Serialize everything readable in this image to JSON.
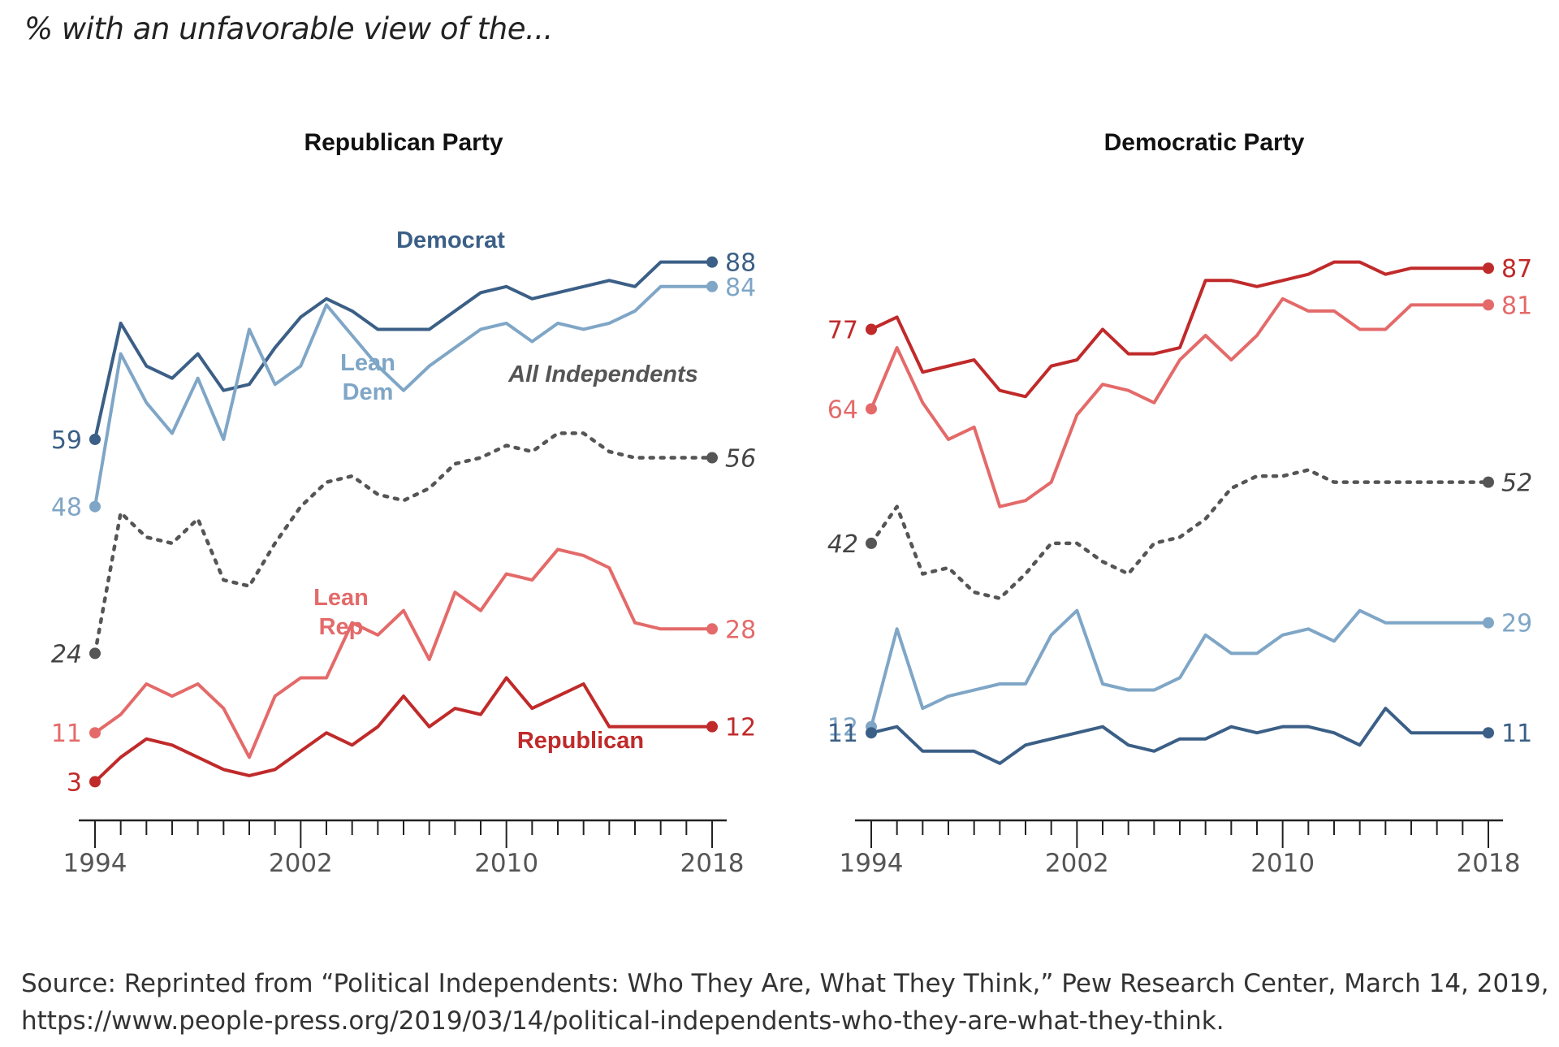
{
  "subtitle": "% with an unfavorable view of the...",
  "source": {
    "line1": "Source: Reprinted from “Political Independents: Who They Are, What They Think,” Pew Research Center, March 14, 2019,",
    "line2": "https://www.people-press.org/2019/03/14/political-independents-who-they-are-what-they-think."
  },
  "colors": {
    "democrat": "#3b5f86",
    "lean_dem": "#7fa6c6",
    "all_independents": "#555555",
    "lean_rep": "#e46a6a",
    "republican": "#c02a2a",
    "axis": "#222222",
    "tick_label": "#555555"
  },
  "chart_data": [
    {
      "type": "line",
      "title": "Republican Party",
      "xlabel": "",
      "ylabel": "",
      "x_tick_labels": [
        "1994",
        "2002",
        "2010",
        "2018"
      ],
      "xlim": [
        1994,
        2018
      ],
      "ylim": [
        0,
        95
      ],
      "x": [
        1994,
        1995,
        1996,
        1997,
        1998,
        1999,
        2000,
        2001,
        2002,
        2003,
        2004,
        2005,
        2006,
        2007,
        2008,
        2009,
        2010,
        2011,
        2012,
        2013,
        2014,
        2015,
        2016,
        2017,
        2018
      ],
      "series": [
        {
          "name": "Democrat",
          "key": "democrat",
          "end_label": "88",
          "start_label": "59",
          "values": [
            59,
            78,
            71,
            69,
            73,
            67,
            68,
            74,
            79,
            82,
            80,
            77,
            77,
            77,
            80,
            83,
            84,
            82,
            83,
            84,
            85,
            84,
            88,
            88,
            88
          ]
        },
        {
          "name": "Lean Dem",
          "key": "lean_dem",
          "end_label": "84",
          "start_label": "48",
          "values": [
            48,
            73,
            65,
            60,
            69,
            59,
            77,
            68,
            71,
            81,
            76,
            71,
            67,
            71,
            74,
            77,
            78,
            75,
            78,
            77,
            78,
            80,
            84,
            84,
            84
          ]
        },
        {
          "name": "All Independents",
          "key": "all_independents",
          "dashed": true,
          "end_label": "56",
          "start_label": "24",
          "values": [
            24,
            47,
            43,
            42,
            46,
            36,
            35,
            42,
            48,
            52,
            53,
            50,
            49,
            51,
            55,
            56,
            58,
            57,
            60,
            60,
            57,
            56,
            56,
            56,
            56
          ]
        },
        {
          "name": "Lean Rep",
          "key": "lean_rep",
          "end_label": "28",
          "start_label": "11",
          "values": [
            11,
            14,
            19,
            17,
            19,
            15,
            7,
            17,
            20,
            20,
            29,
            27,
            31,
            23,
            34,
            31,
            37,
            36,
            41,
            40,
            38,
            29,
            28,
            28,
            28
          ]
        },
        {
          "name": "Republican",
          "key": "republican",
          "end_label": "12",
          "start_label": "3",
          "values": [
            3,
            7,
            10,
            9,
            7,
            5,
            4,
            5,
            8,
            11,
            9,
            12,
            17,
            12,
            15,
            14,
            20,
            15,
            17,
            19,
            12,
            12,
            12,
            12,
            12
          ]
        }
      ],
      "series_labels": [
        {
          "key": "democrat",
          "lines": [
            "Democrat"
          ]
        },
        {
          "key": "lean_dem",
          "lines": [
            "Lean",
            "Dem"
          ]
        },
        {
          "key": "all_independents",
          "lines": [
            "All Independents"
          ]
        },
        {
          "key": "lean_rep",
          "lines": [
            "Lean",
            "Rep"
          ]
        },
        {
          "key": "republican",
          "lines": [
            "Republican"
          ]
        }
      ]
    },
    {
      "type": "line",
      "title": "Democratic Party",
      "xlabel": "",
      "ylabel": "",
      "x_tick_labels": [
        "1994",
        "2002",
        "2010",
        "2018"
      ],
      "xlim": [
        1994,
        2018
      ],
      "ylim": [
        0,
        95
      ],
      "x": [
        1994,
        1995,
        1996,
        1997,
        1998,
        1999,
        2000,
        2001,
        2002,
        2003,
        2004,
        2005,
        2006,
        2007,
        2008,
        2009,
        2010,
        2011,
        2012,
        2013,
        2014,
        2015,
        2016,
        2017,
        2018
      ],
      "series": [
        {
          "name": "Republican",
          "key": "republican",
          "end_label": "87",
          "start_label": "77",
          "values": [
            77,
            79,
            70,
            71,
            72,
            67,
            66,
            71,
            72,
            77,
            73,
            73,
            74,
            85,
            85,
            84,
            85,
            86,
            88,
            88,
            86,
            87,
            87,
            87,
            87
          ]
        },
        {
          "name": "Lean Rep",
          "key": "lean_rep",
          "end_label": "81",
          "start_label": "64",
          "values": [
            64,
            74,
            65,
            59,
            61,
            48,
            49,
            52,
            63,
            68,
            67,
            65,
            72,
            76,
            72,
            76,
            82,
            80,
            80,
            77,
            77,
            81,
            81,
            81,
            81
          ]
        },
        {
          "name": "All Independents",
          "key": "all_independents",
          "dashed": true,
          "end_label": "52",
          "start_label": "42",
          "values": [
            42,
            48,
            37,
            38,
            34,
            33,
            37,
            42,
            42,
            39,
            37,
            42,
            43,
            46,
            51,
            53,
            53,
            54,
            52,
            52,
            52,
            52,
            52,
            52,
            52
          ]
        },
        {
          "name": "Lean Dem",
          "key": "lean_dem",
          "end_label": "29",
          "start_label": "12",
          "values": [
            12,
            28,
            15,
            17,
            18,
            19,
            19,
            27,
            31,
            19,
            18,
            18,
            20,
            27,
            24,
            24,
            27,
            28,
            26,
            31,
            29,
            29,
            29,
            29,
            29
          ]
        },
        {
          "name": "Democrat",
          "key": "democrat",
          "end_label": "11",
          "start_label": "11",
          "values": [
            11,
            12,
            8,
            8,
            8,
            6,
            9,
            10,
            11,
            12,
            9,
            8,
            10,
            10,
            12,
            11,
            12,
            12,
            11,
            9,
            15,
            11,
            11,
            11,
            11
          ]
        }
      ],
      "series_labels": []
    }
  ]
}
